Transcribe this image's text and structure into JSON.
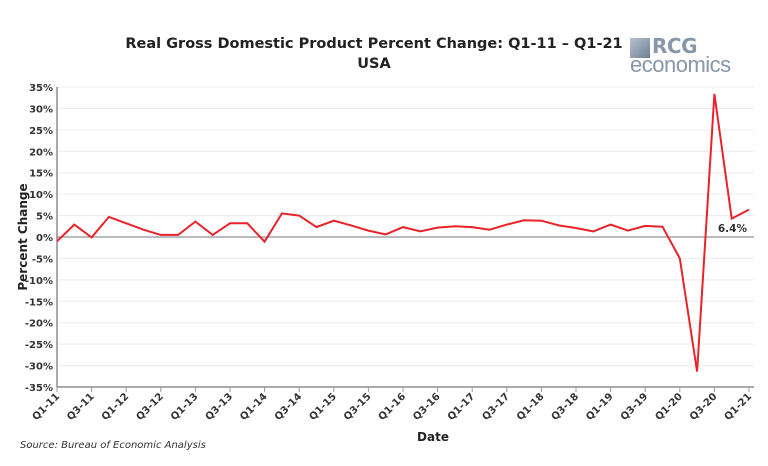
{
  "chart_data": {
    "type": "line",
    "title": "Real Gross Domestic Product Percent Change: Q1-11 – Q1-21",
    "subtitle": "USA",
    "xlabel": "Date",
    "ylabel": "Percent Change",
    "ylim": [
      -35,
      35
    ],
    "y_ticks": [
      35,
      30,
      25,
      20,
      15,
      10,
      5,
      0,
      -5,
      -10,
      -15,
      -20,
      -25,
      -30,
      -35
    ],
    "y_tick_suffix": "%",
    "grid": true,
    "x": [
      "Q1-11",
      "Q2-11",
      "Q3-11",
      "Q4-11",
      "Q1-12",
      "Q2-12",
      "Q3-12",
      "Q4-12",
      "Q1-13",
      "Q2-13",
      "Q3-13",
      "Q4-13",
      "Q1-14",
      "Q2-14",
      "Q3-14",
      "Q4-14",
      "Q1-15",
      "Q2-15",
      "Q3-15",
      "Q4-15",
      "Q1-16",
      "Q2-16",
      "Q3-16",
      "Q4-16",
      "Q1-17",
      "Q2-17",
      "Q3-17",
      "Q4-17",
      "Q1-18",
      "Q2-18",
      "Q3-18",
      "Q4-18",
      "Q1-19",
      "Q2-19",
      "Q3-19",
      "Q4-19",
      "Q1-20",
      "Q2-20",
      "Q3-20",
      "Q4-20",
      "Q1-21"
    ],
    "x_tick_labels": [
      "Q1-11",
      "Q3-11",
      "Q1-12",
      "Q3-12",
      "Q1-13",
      "Q3-13",
      "Q1-14",
      "Q3-14",
      "Q1-15",
      "Q3-15",
      "Q1-16",
      "Q3-16",
      "Q1-17",
      "Q3-17",
      "Q1-18",
      "Q3-18",
      "Q1-19",
      "Q3-19",
      "Q1-20",
      "Q3-20",
      "Q1-21"
    ],
    "series": [
      {
        "values": [
          -1.0,
          2.9,
          -0.1,
          4.7,
          3.2,
          1.7,
          0.5,
          0.5,
          3.6,
          0.5,
          3.2,
          3.2,
          -1.1,
          5.5,
          5.0,
          2.3,
          3.8,
          2.7,
          1.5,
          0.6,
          2.3,
          1.3,
          2.2,
          2.5,
          2.3,
          1.7,
          2.9,
          3.9,
          3.8,
          2.7,
          2.1,
          1.3,
          2.9,
          1.5,
          2.6,
          2.4,
          -5.0,
          -31.4,
          33.4,
          4.3,
          6.4
        ],
        "color": "#e8232a"
      }
    ],
    "annotations": [
      {
        "x": "Q1-21",
        "text": "6.4%"
      }
    ],
    "source": "Source: Bureau of Economic Analysis"
  },
  "logo": {
    "text_top": "RCG",
    "text_bottom": "economics"
  }
}
